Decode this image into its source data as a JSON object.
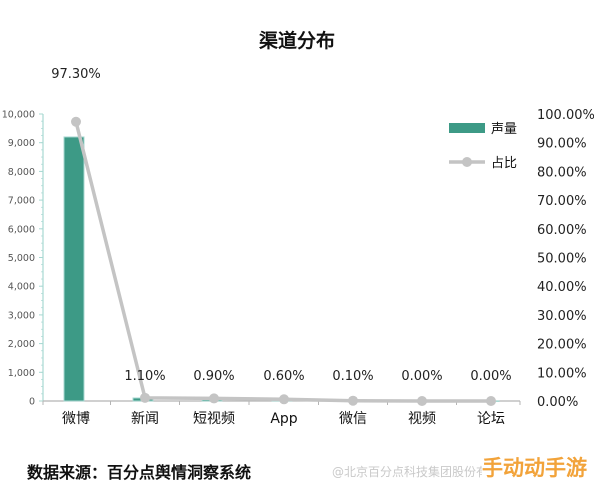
{
  "chart_data": {
    "type": "bar+line",
    "title": "渠道分布",
    "categories": [
      "微博",
      "新闻",
      "短视频",
      "App",
      "微信",
      "视频",
      "论坛"
    ],
    "series": [
      {
        "name": "声量",
        "type": "bar",
        "axis": "left",
        "color": "#3d9a86",
        "values": [
          9200,
          105,
          85,
          55,
          10,
          1,
          1
        ]
      },
      {
        "name": "占比",
        "type": "line",
        "axis": "right",
        "color": "#c4c4c4",
        "values": [
          97.3,
          1.1,
          0.9,
          0.6,
          0.1,
          0.0,
          0.0
        ],
        "labels": [
          "97.30%",
          "1.10%",
          "0.90%",
          "0.60%",
          "0.10%",
          "0.00%",
          "0.00%"
        ]
      }
    ],
    "left_axis": {
      "ylim": [
        0,
        10000
      ],
      "ticks": [
        "0",
        "1,000",
        "2,000",
        "3,000",
        "4,000",
        "5,000",
        "6,000",
        "7,000",
        "8,000",
        "9,000",
        "10,000"
      ]
    },
    "right_axis": {
      "ylim": [
        0,
        100
      ],
      "ticks": [
        "0.00%",
        "10.00%",
        "20.00%",
        "30.00%",
        "40.00%",
        "50.00%",
        "60.00%",
        "70.00%",
        "80.00%",
        "90.00%",
        "100.00%"
      ]
    },
    "legend_position": "top-right",
    "grid": false
  },
  "source_text": "数据来源：百分点舆情洞察系统",
  "watermark_text": "@北京百分点科技集团股份有限公司",
  "brand_text": "手动动手游"
}
